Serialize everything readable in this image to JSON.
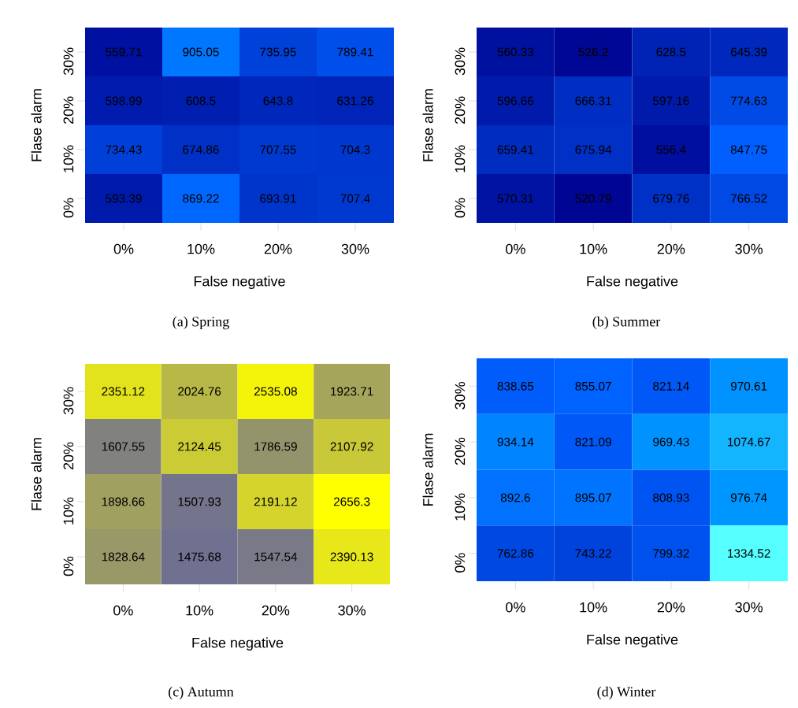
{
  "chart_data": [
    {
      "type": "heatmap",
      "categories": [
        "0%",
        "10%",
        "20%",
        "30%"
      ],
      "y_categories": [
        "30%",
        "20%",
        "10%",
        "0%"
      ],
      "xlabel": "False negative",
      "ylabel": "Flase alarm",
      "data_labels": true,
      "annotations": [
        "(a) Spring"
      ],
      "cells": [
        [
          559.71,
          905.05,
          735.95,
          789.41
        ],
        [
          598.99,
          608.5,
          643.8,
          631.26
        ],
        [
          734.43,
          674.86,
          707.55,
          704.3
        ],
        [
          593.39,
          869.22,
          693.91,
          707.4
        ]
      ]
    },
    {
      "type": "heatmap",
      "categories": [
        "0%",
        "10%",
        "20%",
        "30%"
      ],
      "y_categories": [
        "30%",
        "20%",
        "10%",
        "0%"
      ],
      "xlabel": "False negative",
      "ylabel": "Flase alarm",
      "data_labels": true,
      "annotations": [
        "(b) Summer"
      ],
      "cells": [
        [
          560.33,
          526.2,
          628.5,
          645.39
        ],
        [
          596.66,
          666.31,
          597.16,
          774.63
        ],
        [
          659.41,
          675.94,
          556.4,
          847.75
        ],
        [
          570.31,
          520.79,
          679.76,
          766.52
        ]
      ]
    },
    {
      "type": "heatmap",
      "categories": [
        "0%",
        "10%",
        "20%",
        "30%"
      ],
      "y_categories": [
        "30%",
        "20%",
        "10%",
        "0%"
      ],
      "xlabel": "False negative",
      "ylabel": "Flase alarm",
      "data_labels": true,
      "annotations": [
        "(c) Autumn"
      ],
      "cells": [
        [
          2351.12,
          2024.76,
          2535.08,
          1923.71
        ],
        [
          1607.55,
          2124.45,
          1786.59,
          2107.92
        ],
        [
          1898.66,
          1507.93,
          2191.12,
          2656.3
        ],
        [
          1828.64,
          1475.68,
          1547.54,
          2390.13
        ]
      ]
    },
    {
      "type": "heatmap",
      "categories": [
        "0%",
        "10%",
        "20%",
        "30%"
      ],
      "y_categories": [
        "30%",
        "20%",
        "10%",
        "0%"
      ],
      "xlabel": "False negative",
      "ylabel": "Flase alarm",
      "data_labels": true,
      "annotations": [
        "(d) Winter"
      ],
      "cells": [
        [
          838.65,
          855.07,
          821.14,
          970.61
        ],
        [
          934.14,
          821.09,
          969.43,
          1074.67
        ],
        [
          892.6,
          895.07,
          808.93,
          976.74
        ],
        [
          762.86,
          743.22,
          799.32,
          1334.52
        ]
      ]
    }
  ]
}
